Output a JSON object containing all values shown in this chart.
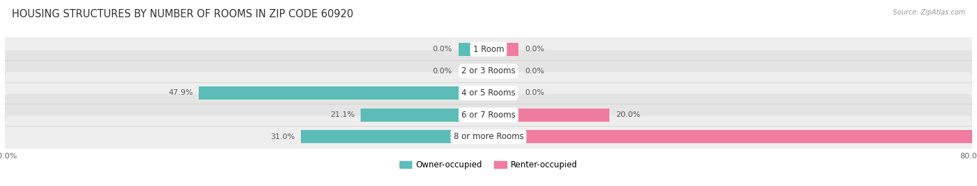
{
  "title": "HOUSING STRUCTURES BY NUMBER OF ROOMS IN ZIP CODE 60920",
  "source": "Source: ZipAtlas.com",
  "categories": [
    "1 Room",
    "2 or 3 Rooms",
    "4 or 5 Rooms",
    "6 or 7 Rooms",
    "8 or more Rooms"
  ],
  "owner_values": [
    0.0,
    0.0,
    47.9,
    21.1,
    31.0
  ],
  "renter_values": [
    0.0,
    0.0,
    0.0,
    20.0,
    80.0
  ],
  "owner_color": "#5bbcb8",
  "renter_color": "#f07ca0",
  "xlim_left": -80.0,
  "xlim_right": 80.0,
  "bar_height": 0.6,
  "title_fontsize": 10.5,
  "axis_fontsize": 8,
  "label_fontsize": 8,
  "category_fontsize": 8.5,
  "zero_stub": 5.0,
  "row_even_color": "#eeeeee",
  "row_odd_color": "#e4e4e4",
  "bg_color": "#f8f8f8"
}
